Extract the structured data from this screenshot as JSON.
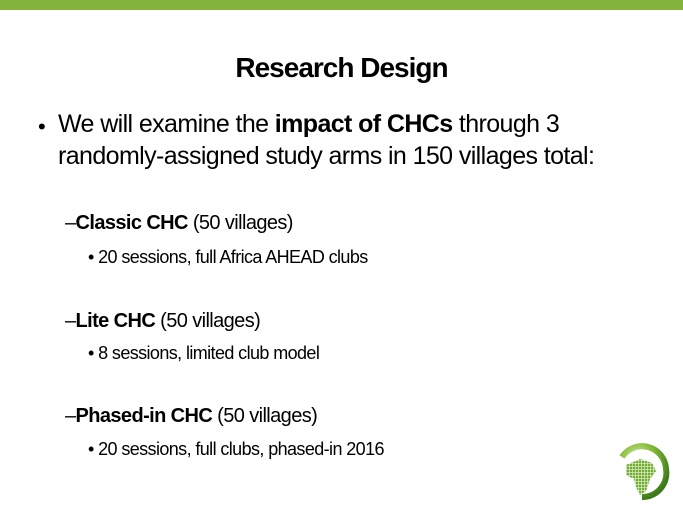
{
  "colors": {
    "accent_bar": "#84b43c"
  },
  "title": "Research Design",
  "intro": {
    "pre": "We will examine the ",
    "bold": "impact of CHCs",
    "post": " through 3",
    "line2": "randomly-assigned study arms in 150 villages total:"
  },
  "arms": [
    {
      "name": "Classic CHC",
      "count": " (50 villages)",
      "detail": "20 sessions, full Africa AHEAD clubs"
    },
    {
      "name": "Lite CHC",
      "count": " (50 villages)",
      "detail": "8 sessions, limited club model"
    },
    {
      "name": "Phased-in CHC",
      "count": " (50 villages)",
      "detail": "20 sessions, full clubs, phased-in 2016"
    }
  ],
  "logo": "globe-africa-logo"
}
